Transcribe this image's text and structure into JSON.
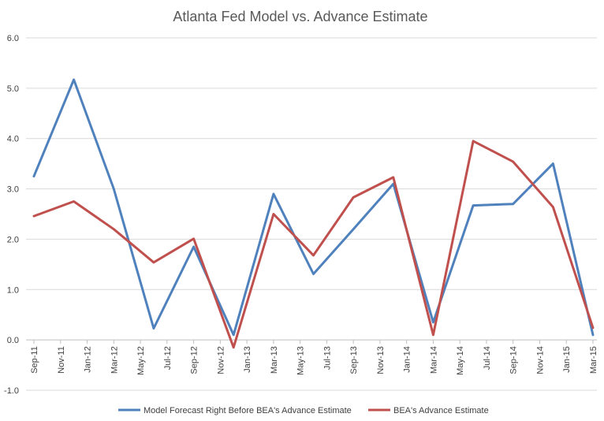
{
  "chart_data": {
    "type": "line",
    "title": "Atlanta Fed Model vs. Advance Estimate",
    "xlabel": "",
    "ylabel": "",
    "ylim": [
      -1.0,
      6.0
    ],
    "yticks": [
      -1.0,
      0.0,
      1.0,
      2.0,
      3.0,
      4.0,
      5.0,
      6.0
    ],
    "ytick_labels": [
      "-1.0",
      "0.0",
      "1.0",
      "2.0",
      "3.0",
      "4.0",
      "5.0",
      "6.0"
    ],
    "x_tick_labels": [
      "Sep-11",
      "Nov-11",
      "Jan-12",
      "Mar-12",
      "May-12",
      "Jul-12",
      "Sep-12",
      "Nov-12",
      "Jan-13",
      "Mar-13",
      "May-13",
      "Jul-13",
      "Sep-13",
      "Nov-13",
      "Jan-14",
      "Mar-14",
      "May-14",
      "Jul-14",
      "Sep-14",
      "Nov-14",
      "Jan-15",
      "Mar-15"
    ],
    "x_range": [
      "Sep-11",
      "Mar-15"
    ],
    "grid": true,
    "legend_position": "bottom",
    "series": [
      {
        "name": "Model Forecast Right Before BEA's Advance Estimate",
        "color": "#4F81BD",
        "points": [
          {
            "x": "Sep-11",
            "y": 3.25
          },
          {
            "x": "Dec-11",
            "y": 5.17
          },
          {
            "x": "Mar-12",
            "y": 3.0
          },
          {
            "x": "Jun-12",
            "y": 0.23
          },
          {
            "x": "Sep-12",
            "y": 1.85
          },
          {
            "x": "Dec-12",
            "y": 0.1
          },
          {
            "x": "Mar-13",
            "y": 2.9
          },
          {
            "x": "Jun-13",
            "y": 1.31
          },
          {
            "x": "Sep-13",
            "y": 2.2
          },
          {
            "x": "Dec-13",
            "y": 3.1
          },
          {
            "x": "Mar-14",
            "y": 0.35
          },
          {
            "x": "Jun-14",
            "y": 2.67
          },
          {
            "x": "Sep-14",
            "y": 2.7
          },
          {
            "x": "Dec-14",
            "y": 3.5
          },
          {
            "x": "Mar-15",
            "y": 0.1
          }
        ]
      },
      {
        "name": "BEA's Advance Estimate",
        "color": "#C0504D",
        "points": [
          {
            "x": "Sep-11",
            "y": 2.46
          },
          {
            "x": "Dec-11",
            "y": 2.75
          },
          {
            "x": "Mar-12",
            "y": 2.2
          },
          {
            "x": "Jun-12",
            "y": 1.54
          },
          {
            "x": "Sep-12",
            "y": 2.01
          },
          {
            "x": "Dec-12",
            "y": -0.15
          },
          {
            "x": "Mar-13",
            "y": 2.5
          },
          {
            "x": "Jun-13",
            "y": 1.68
          },
          {
            "x": "Sep-13",
            "y": 2.83
          },
          {
            "x": "Dec-13",
            "y": 3.23
          },
          {
            "x": "Mar-14",
            "y": 0.1
          },
          {
            "x": "Jun-14",
            "y": 3.95
          },
          {
            "x": "Sep-14",
            "y": 3.54
          },
          {
            "x": "Dec-14",
            "y": 2.64
          },
          {
            "x": "Mar-15",
            "y": 0.24
          }
        ]
      }
    ]
  }
}
